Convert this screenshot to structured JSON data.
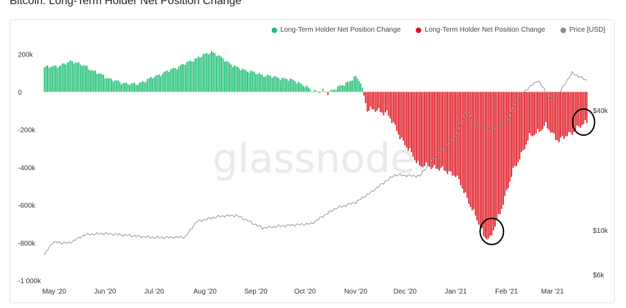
{
  "title": "Bitcoin: Long-Term Holder Net Position Change",
  "watermark": "glassnode",
  "legend": [
    {
      "label": "Long-Term Holder Net Position Change",
      "color": "#1dbf73"
    },
    {
      "label": "Long-Term Holder Net Position Change",
      "color": "#e0141e"
    },
    {
      "label": "Price [USD]",
      "color": "#8a8a8a"
    }
  ],
  "chart_data": {
    "type": "bar",
    "title": "Bitcoin: Long-Term Holder Net Position Change",
    "x_range": [
      "2020-04-24",
      "2021-03-24"
    ],
    "x_ticks": [
      {
        "label": "May '20",
        "date": "2020-05-01"
      },
      {
        "label": "Jun '20",
        "date": "2020-06-01"
      },
      {
        "label": "Jul '20",
        "date": "2020-07-01"
      },
      {
        "label": "Aug '20",
        "date": "2020-08-01"
      },
      {
        "label": "Sep '20",
        "date": "2020-09-01"
      },
      {
        "label": "Oct '20",
        "date": "2020-10-01"
      },
      {
        "label": "Nov '20",
        "date": "2020-11-01"
      },
      {
        "label": "Dec '20",
        "date": "2020-12-01"
      },
      {
        "label": "Jan '21",
        "date": "2021-01-01"
      },
      {
        "label": "Feb '21",
        "date": "2021-02-01"
      },
      {
        "label": "Mar '21",
        "date": "2021-03-01"
      }
    ],
    "y_left": {
      "range": [
        -1000000,
        250000
      ],
      "ticks": [
        200000,
        0,
        -200000,
        -400000,
        -600000,
        -800000,
        -1000000
      ],
      "tick_labels": [
        "200k",
        "0",
        "-200k",
        "-400k",
        "-600k",
        "-800k",
        "-1 000k"
      ]
    },
    "y_right": {
      "scale": "log",
      "range": [
        5600,
        85000
      ],
      "ticks": [
        40000,
        10000,
        6000
      ],
      "tick_labels": [
        "$40k",
        "$10k",
        "$6k"
      ]
    },
    "series": [
      {
        "name": "Long-Term Holder Net Position Change",
        "axis": "left",
        "keypoints": [
          [
            "2020-04-25",
            130000
          ],
          [
            "2020-05-05",
            140000
          ],
          [
            "2020-05-12",
            165000
          ],
          [
            "2020-05-20",
            135000
          ],
          [
            "2020-06-01",
            80000
          ],
          [
            "2020-06-10",
            50000
          ],
          [
            "2020-06-20",
            40000
          ],
          [
            "2020-07-01",
            80000
          ],
          [
            "2020-07-20",
            150000
          ],
          [
            "2020-08-05",
            215000
          ],
          [
            "2020-08-20",
            130000
          ],
          [
            "2020-09-05",
            90000
          ],
          [
            "2020-09-25",
            60000
          ],
          [
            "2020-10-05",
            10000
          ],
          [
            "2020-10-14",
            -5000
          ],
          [
            "2020-10-25",
            40000
          ],
          [
            "2020-11-01",
            80000
          ],
          [
            "2020-11-04",
            50000
          ],
          [
            "2020-11-08",
            -90000
          ],
          [
            "2020-11-20",
            -110000
          ],
          [
            "2020-12-01",
            -280000
          ],
          [
            "2020-12-10",
            -390000
          ],
          [
            "2020-12-20",
            -400000
          ],
          [
            "2021-01-01",
            -440000
          ],
          [
            "2021-01-10",
            -600000
          ],
          [
            "2021-01-18",
            -760000
          ],
          [
            "2021-01-22",
            -780000
          ],
          [
            "2021-01-28",
            -640000
          ],
          [
            "2021-02-05",
            -420000
          ],
          [
            "2021-02-15",
            -240000
          ],
          [
            "2021-02-25",
            -180000
          ],
          [
            "2021-03-05",
            -260000
          ],
          [
            "2021-03-15",
            -200000
          ],
          [
            "2021-03-22",
            -160000
          ]
        ]
      },
      {
        "name": "Price [USD]",
        "axis": "right",
        "keypoints": [
          [
            "2020-04-25",
            7500
          ],
          [
            "2020-04-30",
            8700
          ],
          [
            "2020-05-10",
            8600
          ],
          [
            "2020-05-20",
            9500
          ],
          [
            "2020-06-01",
            9600
          ],
          [
            "2020-06-15",
            9400
          ],
          [
            "2020-07-01",
            9150
          ],
          [
            "2020-07-20",
            9200
          ],
          [
            "2020-07-27",
            11000
          ],
          [
            "2020-08-10",
            11700
          ],
          [
            "2020-08-20",
            11800
          ],
          [
            "2020-09-05",
            10200
          ],
          [
            "2020-09-20",
            10500
          ],
          [
            "2020-10-05",
            10700
          ],
          [
            "2020-10-20",
            12800
          ],
          [
            "2020-11-01",
            13700
          ],
          [
            "2020-11-10",
            15300
          ],
          [
            "2020-11-25",
            18800
          ],
          [
            "2020-12-10",
            18500
          ],
          [
            "2020-12-20",
            23500
          ],
          [
            "2021-01-01",
            29000
          ],
          [
            "2021-01-08",
            40000
          ],
          [
            "2021-01-12",
            34000
          ],
          [
            "2021-01-22",
            32000
          ],
          [
            "2021-02-01",
            34000
          ],
          [
            "2021-02-08",
            46000
          ],
          [
            "2021-02-20",
            56000
          ],
          [
            "2021-02-28",
            45000
          ],
          [
            "2021-03-05",
            48000
          ],
          [
            "2021-03-13",
            61000
          ],
          [
            "2021-03-22",
            56000
          ]
        ]
      }
    ]
  }
}
